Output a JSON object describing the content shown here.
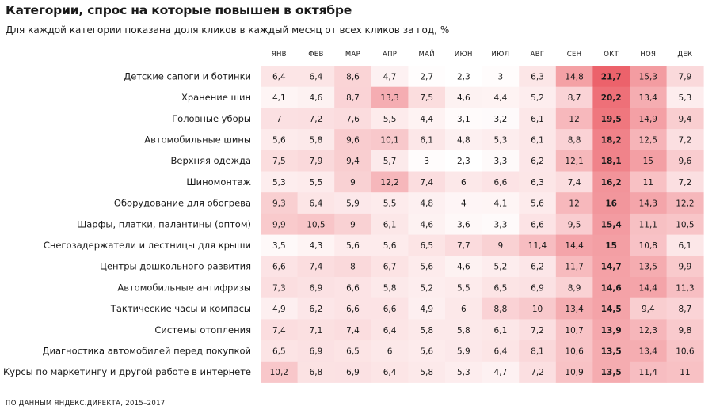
{
  "title": "Категории, спрос на которые повышен в октябре",
  "subtitle": "Для каждой категории показана доля кликов в каждый месяц от всех кликов за год, %",
  "footer": "ПО ДАННЫМ ЯНДЕКС.ДИРЕКТА, 2015–2017",
  "chart_data": {
    "type": "heatmap",
    "title": "Категории, спрос на которые повышен в октябре",
    "subtitle": "Для каждой категории показана доля кликов в каждый месяц от всех кликов за год, %",
    "columns": [
      "ЯНВ",
      "ФЕВ",
      "МАР",
      "АПР",
      "МАЙ",
      "ИЮН",
      "ИЮЛ",
      "АВГ",
      "СЕН",
      "ОКТ",
      "НОЯ",
      "ДЕК"
    ],
    "highlight_column": "ОКТ",
    "color_low": "#ffffff",
    "color_high": "#e8404a",
    "rows": [
      {
        "label": "Детские сапоги и ботинки",
        "values": [
          6.4,
          6.4,
          8.6,
          4.7,
          2.7,
          2.3,
          3,
          6.3,
          14.8,
          21.7,
          15.3,
          7.9
        ]
      },
      {
        "label": "Хранение шин",
        "values": [
          4.1,
          4.6,
          8.7,
          13.3,
          7.5,
          4.6,
          4.4,
          5.2,
          8.7,
          20.2,
          13.4,
          5.3
        ]
      },
      {
        "label": "Головные уборы",
        "values": [
          7,
          7.2,
          7.6,
          5.5,
          4.4,
          3.1,
          3.2,
          6.1,
          12,
          19.5,
          14.9,
          9.4
        ]
      },
      {
        "label": "Автомобильные шины",
        "values": [
          5.6,
          5.8,
          9.6,
          10.1,
          6.1,
          4.8,
          5.3,
          6.1,
          8.8,
          18.2,
          12.5,
          7.2
        ]
      },
      {
        "label": "Верхняя одежда",
        "values": [
          7.5,
          7.9,
          9.4,
          5.7,
          3,
          2.3,
          3.3,
          6.2,
          12.1,
          18.1,
          15,
          9.6
        ]
      },
      {
        "label": "Шиномонтаж",
        "values": [
          5.3,
          5.5,
          9,
          12.2,
          7.4,
          6,
          6.6,
          6.3,
          7.4,
          16.2,
          11,
          7.2
        ]
      },
      {
        "label": "Оборудование для обогрева",
        "values": [
          9.3,
          6.4,
          5.9,
          5.5,
          4.8,
          4,
          4.1,
          5.6,
          12,
          16,
          14.3,
          12.2
        ]
      },
      {
        "label": "Шарфы, платки, палантины (оптом)",
        "values": [
          9.9,
          10.5,
          9,
          6.1,
          4.6,
          3.6,
          3.3,
          6.6,
          9.5,
          15.4,
          11.1,
          10.5
        ]
      },
      {
        "label": "Снегозадержатели и лестницы для крыши",
        "values": [
          3.5,
          4.3,
          5.6,
          5.6,
          6.5,
          7.7,
          9,
          11.4,
          14.4,
          15,
          10.8,
          6.1
        ]
      },
      {
        "label": "Центры дошкольного развития",
        "values": [
          6.6,
          7.4,
          8,
          6.7,
          5.6,
          4.6,
          5.2,
          6.2,
          11.7,
          14.7,
          13.5,
          9.9
        ]
      },
      {
        "label": "Автомобильные антифризы",
        "values": [
          7.3,
          6.9,
          6.6,
          5.8,
          5.2,
          5.5,
          6.5,
          6.9,
          8.9,
          14.6,
          14.4,
          11.3
        ]
      },
      {
        "label": "Тактические часы и компасы",
        "values": [
          4.9,
          6.2,
          6.6,
          6.6,
          4.9,
          6,
          8.8,
          10,
          13.4,
          14.5,
          9.4,
          8.7
        ]
      },
      {
        "label": "Системы отопления",
        "values": [
          7.4,
          7.1,
          7.4,
          6.4,
          5.8,
          5.8,
          6.1,
          7.2,
          10.7,
          13.9,
          12.3,
          9.8
        ]
      },
      {
        "label": "Диагностика автомобилей перед покупкой",
        "values": [
          6.5,
          6.9,
          6.5,
          6,
          5.6,
          5.9,
          6.4,
          8.1,
          10.6,
          13.5,
          13.4,
          10.6
        ]
      },
      {
        "label": "Курсы по маркетингу и другой работе в интернете",
        "values": [
          10.2,
          6.8,
          6.9,
          6.4,
          5.8,
          5.3,
          4.7,
          7.2,
          10.9,
          13.5,
          11.4,
          11
        ]
      }
    ]
  }
}
